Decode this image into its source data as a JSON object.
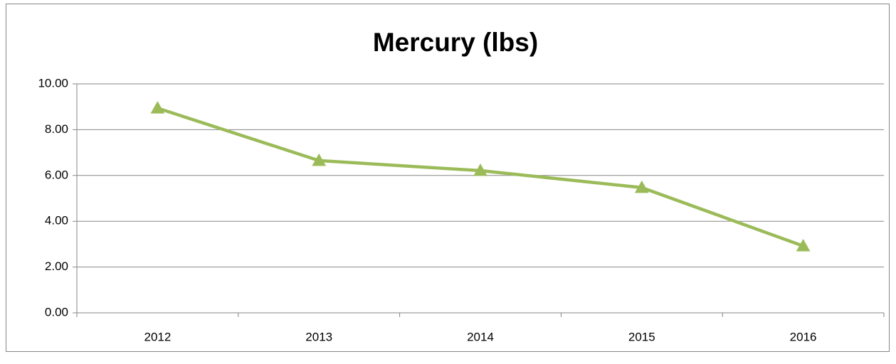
{
  "chart_data": {
    "type": "line",
    "title": "Mercury (lbs)",
    "categories": [
      "2012",
      "2013",
      "2014",
      "2015",
      "2016"
    ],
    "values": [
      8.94,
      6.65,
      6.21,
      5.47,
      2.92
    ],
    "color": "#9bbb59",
    "marker": "triangle",
    "ylim": [
      0,
      10
    ],
    "yticks": [
      {
        "value": 0,
        "label": "0.00"
      },
      {
        "value": 2,
        "label": "2.00"
      },
      {
        "value": 4,
        "label": "4.00"
      },
      {
        "value": 6,
        "label": "6.00"
      },
      {
        "value": 8,
        "label": "8.00"
      },
      {
        "value": 10,
        "label": "10.00"
      }
    ],
    "grid": true
  }
}
